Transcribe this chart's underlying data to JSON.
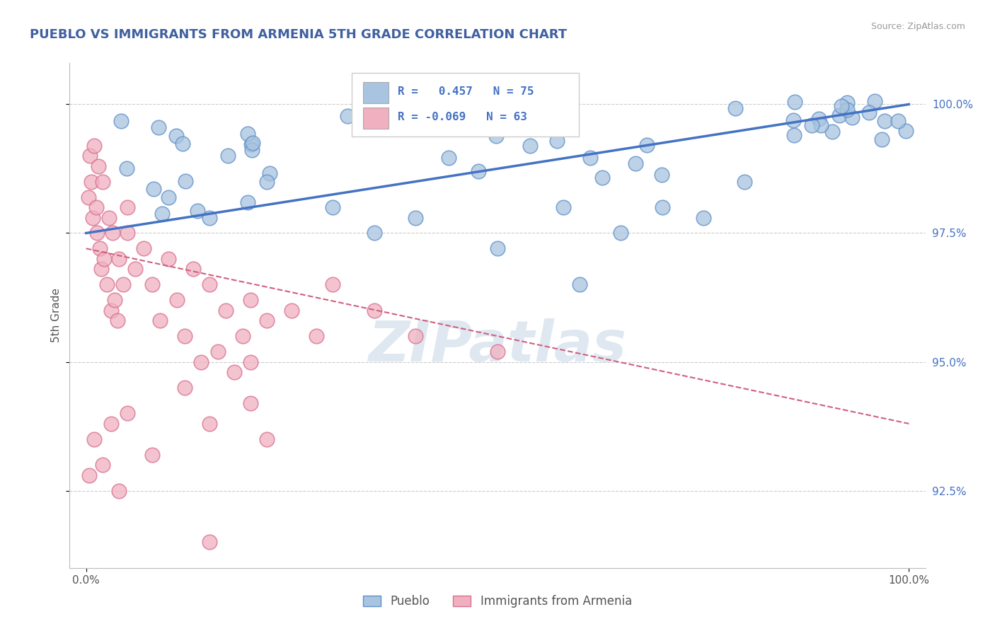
{
  "title": "PUEBLO VS IMMIGRANTS FROM ARMENIA 5TH GRADE CORRELATION CHART",
  "source": "Source: ZipAtlas.com",
  "ylabel": "5th Grade",
  "watermark": "ZIPatlas",
  "r_pueblo": 0.457,
  "n_pueblo": 75,
  "r_armenia": -0.069,
  "n_armenia": 63,
  "xlim": [
    -2,
    102
  ],
  "ylim": [
    91.0,
    100.8
  ],
  "yticks_right": [
    92.5,
    95.0,
    97.5,
    100.0
  ],
  "ytick_labels_right": [
    "92.5%",
    "95.0%",
    "97.5%",
    "100.0%"
  ],
  "color_pueblo": "#A8C4E0",
  "color_armenia": "#F0B0C0",
  "color_pueblo_edge": "#6090C8",
  "color_armenia_edge": "#D87090",
  "color_pueblo_line": "#4472C4",
  "color_armenia_line": "#D06080",
  "color_grid": "#CCCCCC",
  "color_title": "#4060A0",
  "color_source": "#999999",
  "background": "#FFFFFF",
  "pueblo_line_x0": 0,
  "pueblo_line_x1": 100,
  "pueblo_line_y0": 97.5,
  "pueblo_line_y1": 100.0,
  "armenia_line_x0": 0,
  "armenia_line_x1": 100,
  "armenia_line_y0": 97.2,
  "armenia_line_y1": 93.8
}
